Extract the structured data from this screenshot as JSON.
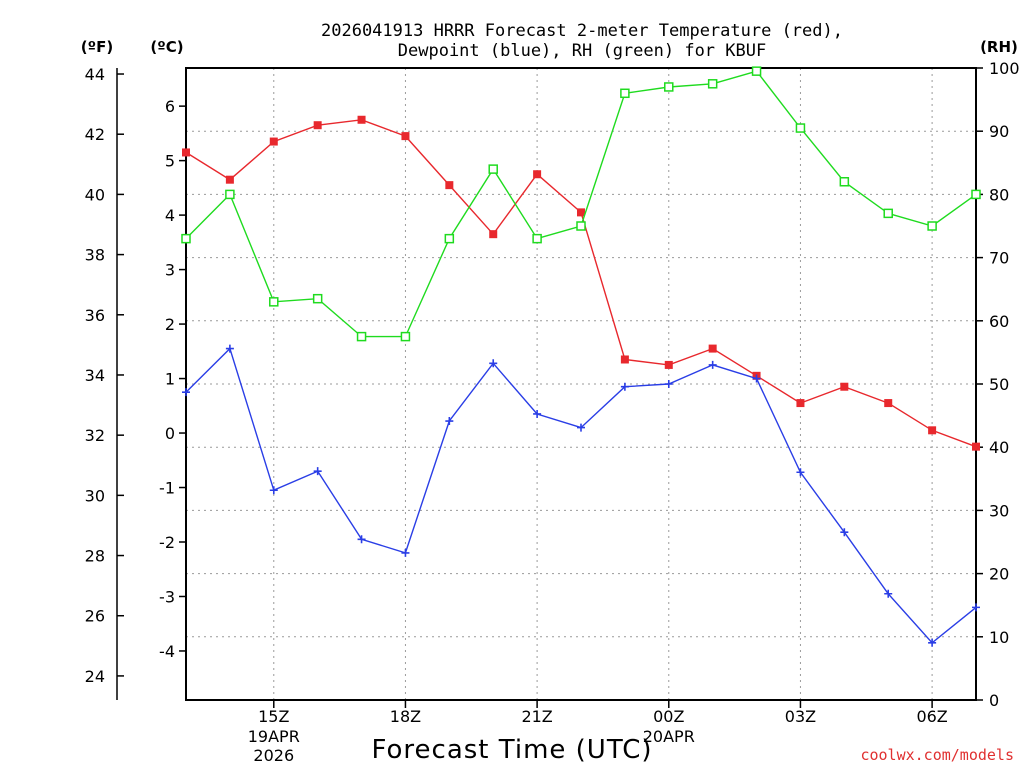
{
  "chart_data": {
    "type": "line",
    "title_line1": "2026041913 HRRR Forecast 2-meter Temperature (red),",
    "title_line2": "Dewpoint (blue), RH (green) for KBUF",
    "xlabel": "Forecast Time (UTC)",
    "credit": "coolwx.com/models",
    "units": {
      "fahrenheit": "(ºF)",
      "celsius": "(ºC)",
      "rh": "(RH)"
    },
    "x_range_hours": [
      13,
      31
    ],
    "x_ticks": [
      {
        "hour": 15,
        "label": "15Z",
        "sub1": "19APR",
        "sub2": "2026"
      },
      {
        "hour": 18,
        "label": "18Z",
        "sub1": "",
        "sub2": ""
      },
      {
        "hour": 21,
        "label": "21Z",
        "sub1": "",
        "sub2": ""
      },
      {
        "hour": 24,
        "label": "00Z",
        "sub1": "20APR",
        "sub2": ""
      },
      {
        "hour": 27,
        "label": "03Z",
        "sub1": "",
        "sub2": ""
      },
      {
        "hour": 30,
        "label": "06Z",
        "sub1": "",
        "sub2": ""
      }
    ],
    "celsius_axis": {
      "range": [
        -4.9,
        6.7
      ],
      "ticks": [
        -4,
        -3,
        -2,
        -1,
        0,
        1,
        2,
        3,
        4,
        5,
        6
      ]
    },
    "fahrenheit_axis": {
      "range": [
        23.2,
        44.2
      ],
      "ticks": [
        24,
        26,
        28,
        30,
        32,
        34,
        36,
        38,
        40,
        42,
        44
      ]
    },
    "rh_axis": {
      "range": [
        0,
        100
      ],
      "ticks": [
        0,
        10,
        20,
        30,
        40,
        50,
        60,
        70,
        80,
        90,
        100
      ]
    },
    "hours": [
      13,
      14,
      15,
      16,
      17,
      18,
      19,
      20,
      21,
      22,
      23,
      24,
      25,
      26,
      27,
      28,
      29,
      30,
      31
    ],
    "series": [
      {
        "name": "Temperature",
        "unit": "C",
        "color": "#e8282d",
        "marker": "filled-square",
        "values": [
          5.15,
          4.65,
          5.35,
          5.65,
          5.75,
          5.45,
          4.55,
          3.65,
          4.75,
          4.05,
          1.35,
          1.25,
          1.55,
          1.05,
          0.55,
          0.85,
          0.55,
          0.05,
          -0.25
        ]
      },
      {
        "name": "Dewpoint",
        "unit": "C",
        "color": "#2a3ee6",
        "marker": "plus",
        "values": [
          0.75,
          1.55,
          -1.05,
          -0.7,
          -1.95,
          -2.2,
          0.22,
          1.28,
          0.35,
          0.1,
          0.85,
          0.9,
          1.25,
          1.0,
          -0.72,
          -1.82,
          -2.95,
          -3.85,
          -3.2
        ]
      },
      {
        "name": "RH",
        "unit": "%",
        "color": "#1fdb1f",
        "marker": "open-square",
        "values": [
          73,
          80,
          63,
          63.5,
          57.5,
          57.5,
          73,
          84,
          73,
          75,
          96,
          97,
          97.5,
          99.5,
          90.5,
          82,
          77,
          75,
          80
        ]
      }
    ]
  }
}
